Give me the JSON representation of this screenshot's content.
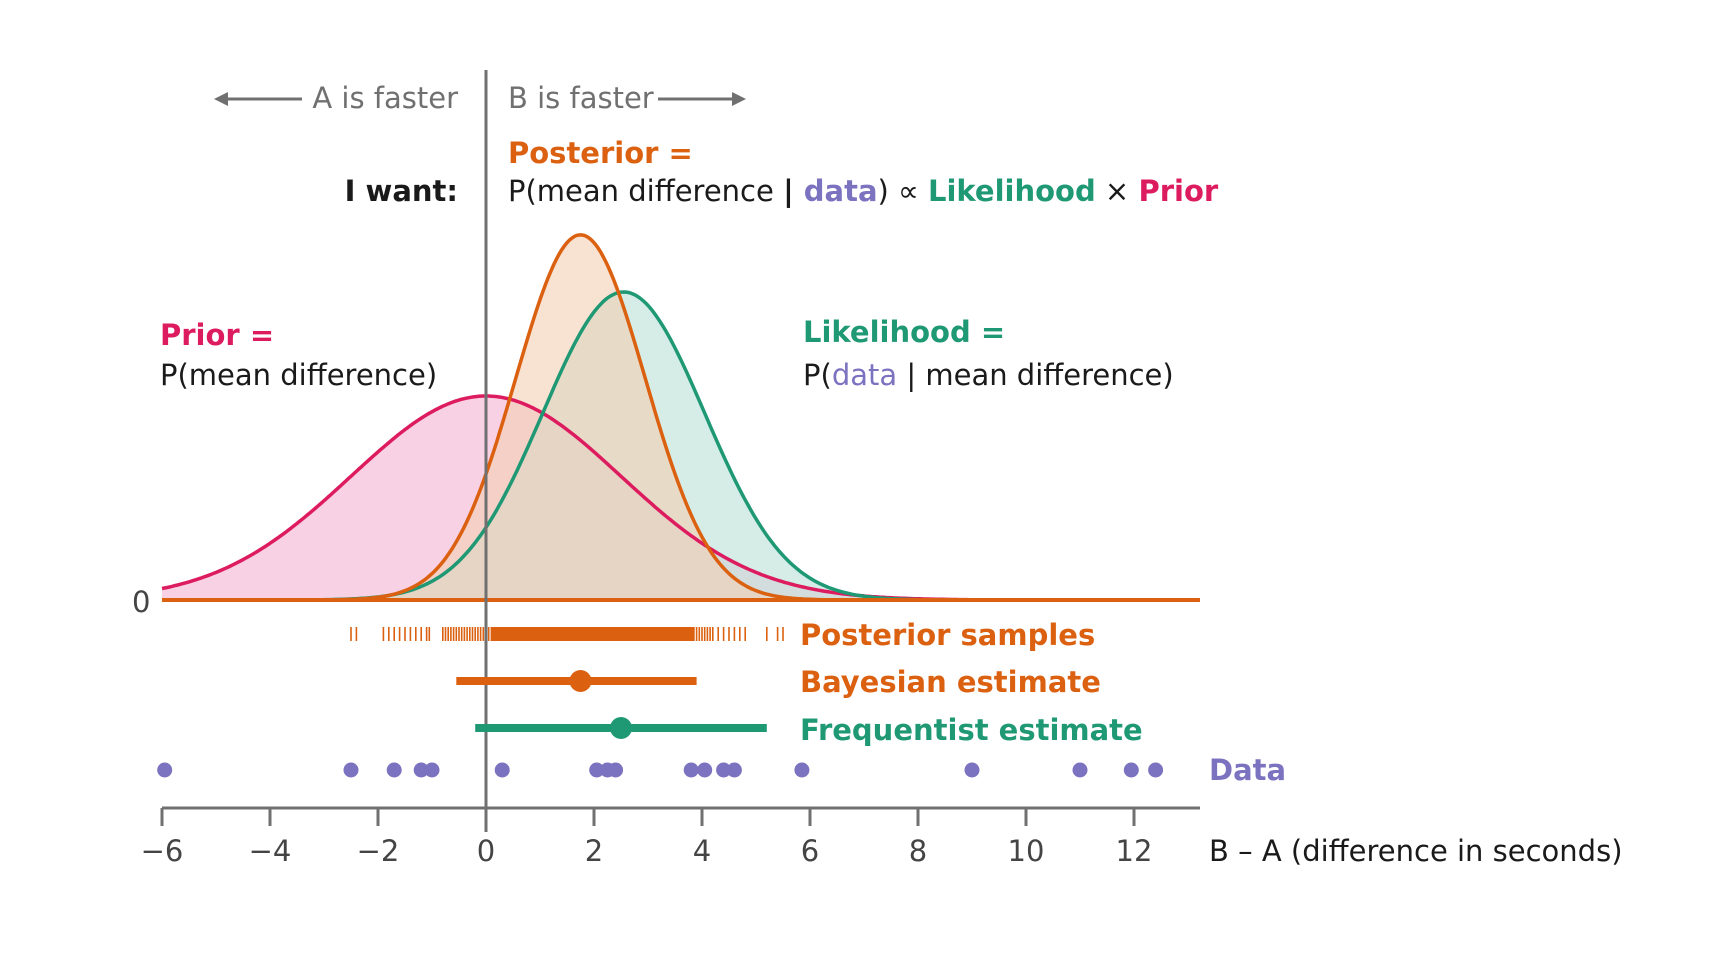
{
  "colors": {
    "prior": "#dd1c5f",
    "prior_fill": "#f5b8d5",
    "posterior": "#db6010",
    "posterior_fill": "#f3cfb4",
    "likelihood": "#1f9874",
    "likelihood_fill": "#bfe4d8",
    "data": "#7b72c0",
    "axis": "#707070",
    "text": "#1a1a1a"
  },
  "header": {
    "arrow_left_label": "A is faster",
    "arrow_right_label": "B is faster",
    "want_label": "I want:",
    "posterior_title": "Posterior =",
    "formula": {
      "p_open": "P(mean difference ",
      "bar": "|",
      "data_word": " data",
      "close_prop": ") ∝ ",
      "likelihood_word": "Likelihood",
      "times": " × ",
      "prior_word": "Prior"
    }
  },
  "prior_label": {
    "title": "Prior =",
    "expr": "P(mean difference)"
  },
  "likelihood_label": {
    "title": "Likelihood =",
    "p_open": "P(",
    "data_word": "data",
    "rest": " | mean difference)"
  },
  "rows": {
    "posterior_samples": "Posterior samples",
    "bayesian_estimate": "Bayesian estimate",
    "frequentist_estimate": "Frequentist estimate",
    "data": "Data"
  },
  "axis": {
    "zero_label": "0",
    "xlabel": "B – A (difference in seconds)",
    "ticks": [
      -6,
      -4,
      -2,
      0,
      2,
      4,
      6,
      8,
      10,
      12
    ],
    "tick_labels": [
      "−6",
      "−4",
      "−2",
      "0",
      "2",
      "4",
      "6",
      "8",
      "10",
      "12"
    ],
    "xlim": [
      -6,
      13
    ]
  },
  "chart_data": {
    "type": "area",
    "curves": [
      {
        "name": "Prior",
        "mean": 0,
        "sd": 2.5,
        "peak": 1.0
      },
      {
        "name": "Posterior",
        "mean": 1.75,
        "sd": 1.2,
        "peak": 1.79
      },
      {
        "name": "Likelihood",
        "mean": 2.55,
        "sd": 1.5,
        "peak": 1.51
      }
    ],
    "posterior_samples": [
      -2.5,
      -2.4,
      -1.9,
      -1.8,
      -1.7,
      -1.6,
      -1.5,
      -1.4,
      -1.3,
      -1.2,
      -1.1,
      -1.05,
      -0.8,
      -0.75,
      -0.7,
      -0.65,
      -0.6,
      -0.55,
      -0.5,
      -0.45,
      -0.4,
      -0.35,
      -0.3,
      -0.25,
      -0.2,
      -0.15,
      -0.1,
      -0.05,
      0.05,
      0.1,
      0.15,
      0.2,
      0.25,
      0.3,
      0.35,
      0.4,
      0.45,
      0.5,
      0.55,
      0.6,
      0.65,
      0.7,
      0.75,
      0.8,
      0.85,
      0.9,
      0.95,
      1.0,
      1.05,
      1.1,
      1.15,
      1.2,
      1.25,
      1.3,
      1.35,
      1.4,
      1.5,
      1.6,
      1.7,
      1.8,
      1.9,
      2.0,
      2.1,
      2.2,
      2.3,
      2.4,
      2.5,
      2.6,
      2.7,
      2.8,
      2.9,
      3.0,
      3.1,
      3.2,
      3.3,
      3.4,
      3.5,
      3.6,
      3.7,
      3.8,
      3.85,
      3.9,
      3.95,
      4.0,
      4.05,
      4.1,
      4.15,
      4.2,
      4.3,
      4.4,
      4.5,
      4.6,
      4.7,
      4.8,
      5.2,
      5.4,
      5.5
    ],
    "bayesian_estimate": {
      "point": 1.75,
      "ci": [
        -0.55,
        3.9
      ]
    },
    "frequentist_estimate": {
      "point": 2.5,
      "ci": [
        -0.2,
        5.2
      ]
    },
    "data": [
      -5.95,
      -2.5,
      -1.7,
      -1.2,
      -1.0,
      0.3,
      2.05,
      2.25,
      2.4,
      3.8,
      4.05,
      4.4,
      4.6,
      5.85,
      9.0,
      11.0,
      11.95,
      12.4
    ],
    "ylim": [
      0,
      1.85
    ]
  }
}
